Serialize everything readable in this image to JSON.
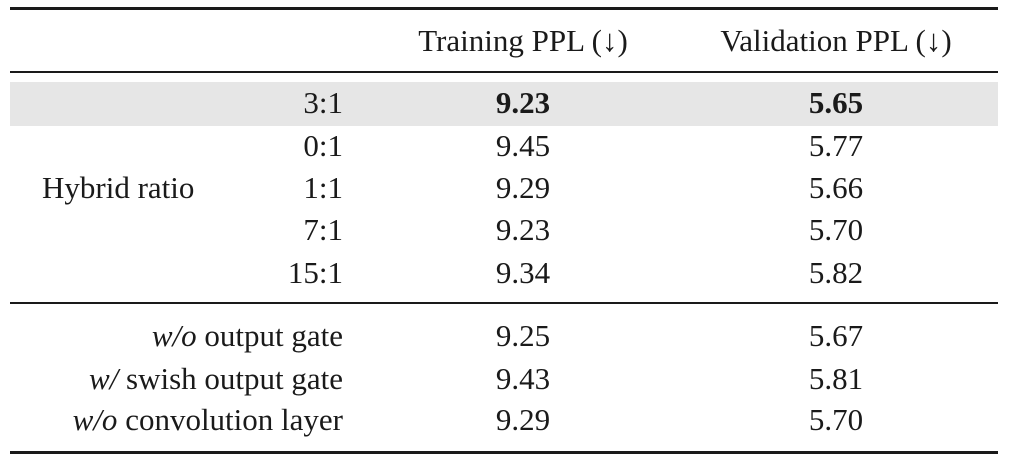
{
  "header": {
    "col_training": "Training PPL (↓)",
    "col_validation": "Validation PPL (↓)"
  },
  "group_label": "Hybrid ratio",
  "ratio_rows": [
    {
      "ratio": "3:1",
      "training": "9.23",
      "validation": "5.65",
      "highlighted": true
    },
    {
      "ratio": "0:1",
      "training": "9.45",
      "validation": "5.77"
    },
    {
      "ratio": "1:1",
      "training": "9.29",
      "validation": "5.66"
    },
    {
      "ratio": "7:1",
      "training": "9.23",
      "validation": "5.70"
    },
    {
      "ratio": "15:1",
      "training": "9.34",
      "validation": "5.82"
    }
  ],
  "ablation_rows": [
    {
      "prefix": "w/o",
      "label": " output gate",
      "training": "9.25",
      "validation": "5.67"
    },
    {
      "prefix": "w/",
      "label": " swish output gate",
      "training": "9.43",
      "validation": "5.81"
    },
    {
      "prefix": "w/o",
      "label": " convolution layer",
      "training": "9.29",
      "validation": "5.70"
    }
  ]
}
